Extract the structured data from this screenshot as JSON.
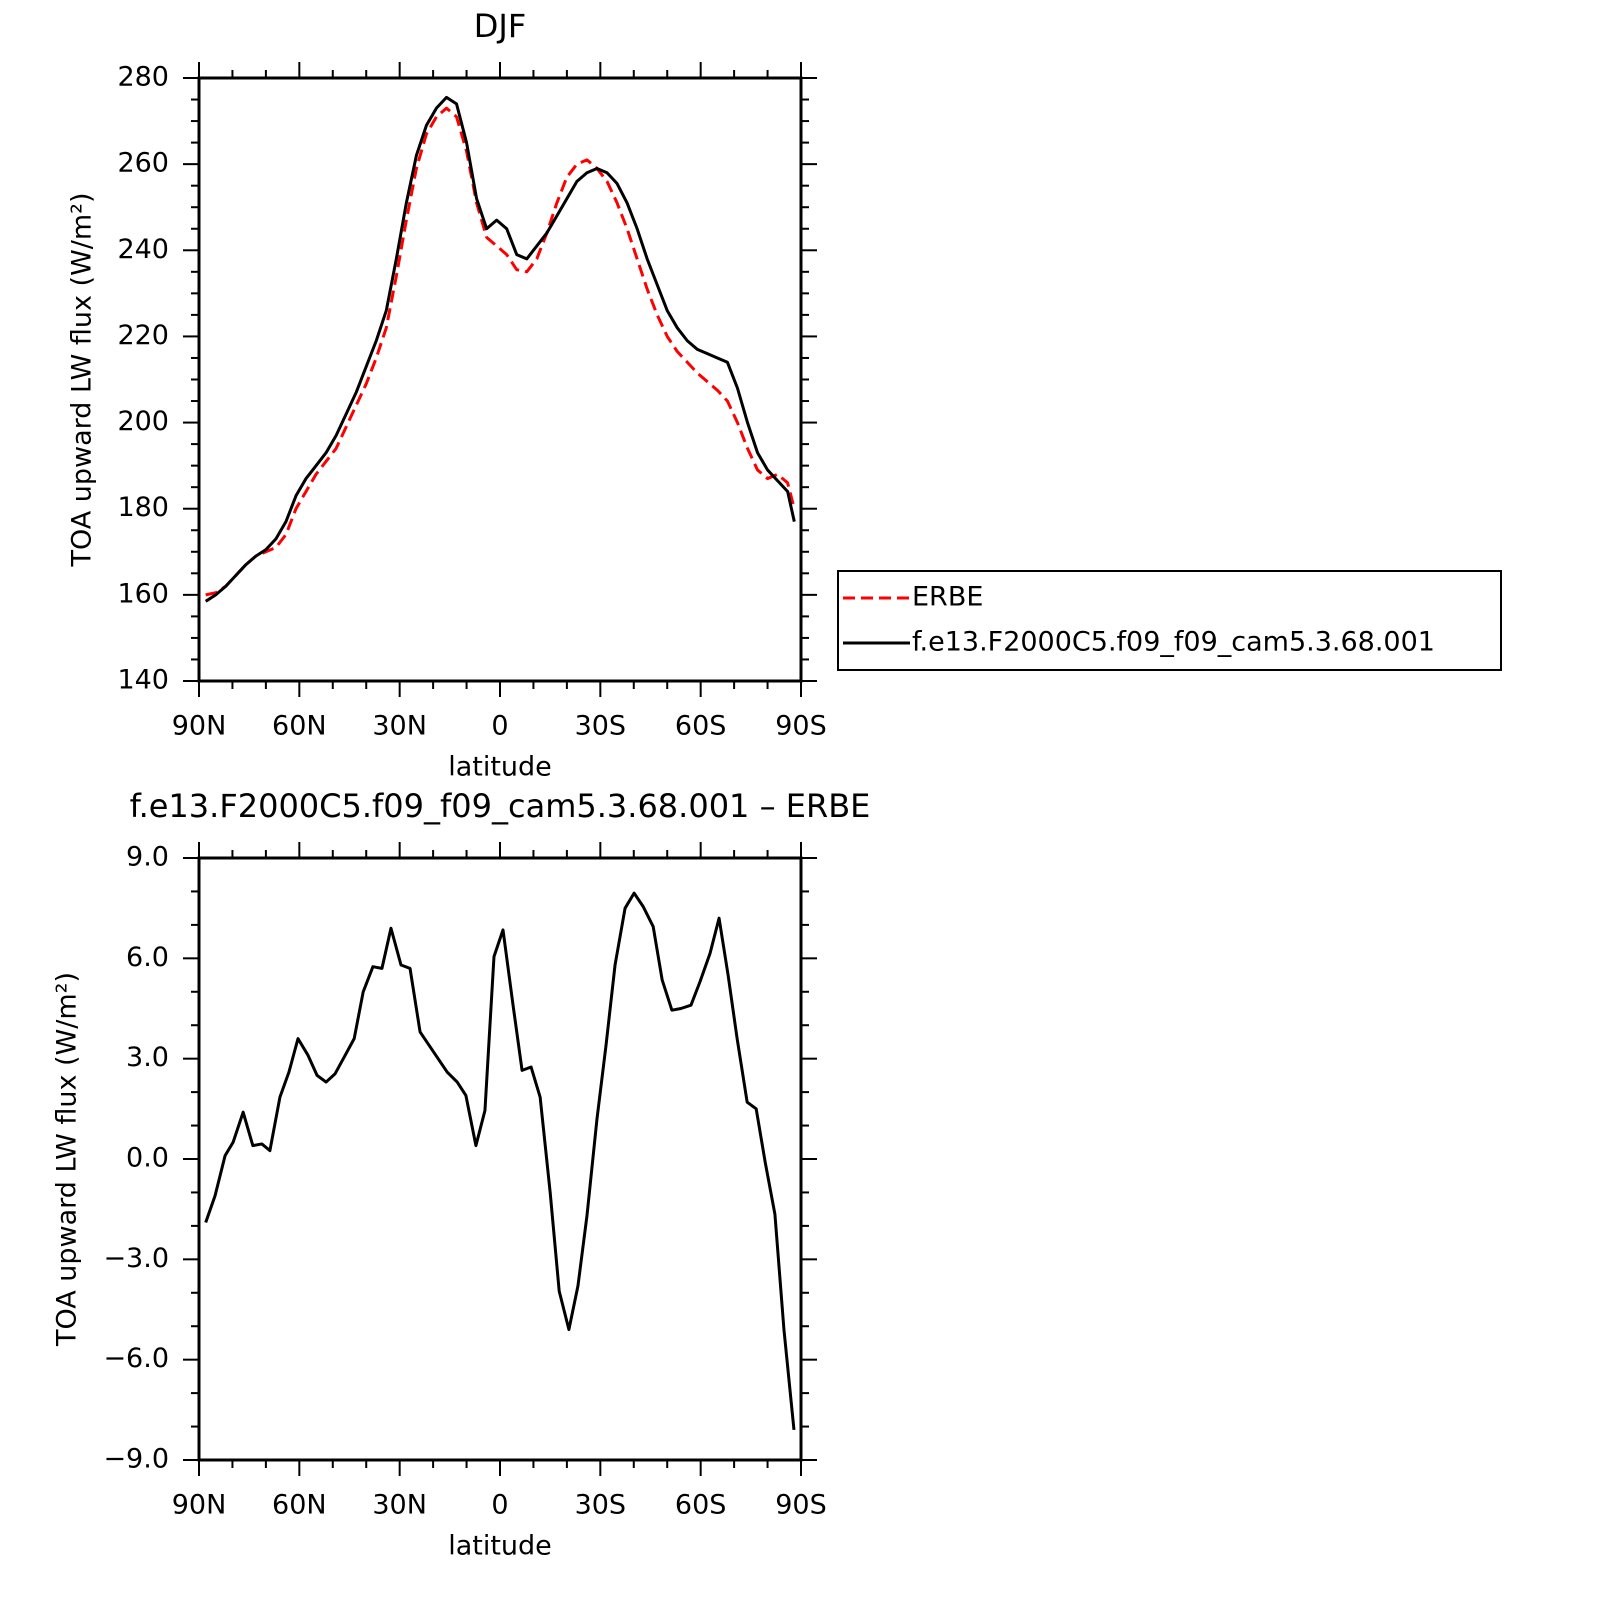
{
  "chart_data": [
    {
      "type": "line",
      "title": "DJF",
      "xlabel": "latitude",
      "ylabel": "TOA upward LW flux (W/m²)",
      "xlim": [
        90,
        -90
      ],
      "xticks": [
        {
          "value": 90,
          "label": "90N"
        },
        {
          "value": 60,
          "label": "60N"
        },
        {
          "value": 30,
          "label": "30N"
        },
        0,
        {
          "value": -30,
          "label": "30S"
        },
        {
          "value": -60,
          "label": "60S"
        },
        {
          "value": -90,
          "label": "90S"
        }
      ],
      "ylim": [
        140,
        280
      ],
      "yticks": [
        140,
        160,
        180,
        200,
        220,
        240,
        260,
        280
      ],
      "legend": "right",
      "x": [
        88,
        85,
        82,
        79,
        76,
        73,
        70,
        67,
        64,
        61,
        58,
        55,
        52,
        49,
        46,
        43,
        40,
        37,
        34,
        31,
        28,
        25,
        22,
        19,
        16,
        13,
        10,
        7,
        4,
        1,
        -2,
        -5,
        -8,
        -11,
        -14,
        -17,
        -20,
        -23,
        -26,
        -29,
        -32,
        -35,
        -38,
        -41,
        -44,
        -47,
        -50,
        -53,
        -56,
        -59,
        -62,
        -65,
        -68,
        -71,
        -74,
        -77,
        -80,
        -83,
        -86,
        -88
      ],
      "series": [
        {
          "name": "ERBE",
          "color": "#ff0000",
          "dash": true,
          "values": [
            160,
            160.5,
            162,
            164.5,
            167,
            169,
            170,
            171,
            174,
            180,
            184,
            188,
            191,
            194,
            199,
            204,
            209,
            215,
            222,
            234,
            247,
            259,
            267,
            271,
            273,
            271,
            263,
            251,
            243,
            241,
            239,
            235.5,
            235,
            238,
            244,
            251,
            257,
            260,
            261,
            259,
            256,
            251,
            245,
            238,
            231,
            225,
            220,
            216.5,
            214,
            211.5,
            209.5,
            207.5,
            205,
            200,
            194,
            189,
            187,
            188,
            186,
            180
          ]
        },
        {
          "name": "f.e13.F2000C5.f09_f09_cam5.3.68.001",
          "color": "#000000",
          "dash": false,
          "values": [
            158.5,
            160,
            162,
            164.5,
            167,
            169,
            170.5,
            173,
            177,
            183,
            187,
            190,
            193,
            197,
            202,
            207,
            213,
            219,
            226,
            238,
            251,
            262,
            269,
            273,
            275.5,
            274,
            265,
            252,
            245,
            247,
            245,
            239,
            238,
            241,
            244,
            248,
            252,
            256,
            258,
            259,
            258,
            255.5,
            251,
            245,
            238,
            232,
            226,
            222,
            219,
            217,
            216,
            215,
            214,
            208,
            200,
            193,
            189,
            186.5,
            184,
            177
          ]
        }
      ]
    },
    {
      "type": "line",
      "title": "f.e13.F2000C5.f09_f09_cam5.3.68.001 – ERBE",
      "xlabel": "latitude",
      "ylabel": "TOA upward LW flux (W/m²)",
      "xlim": [
        90,
        -90
      ],
      "xticks": [
        {
          "value": 90,
          "label": "90N"
        },
        {
          "value": 60,
          "label": "60N"
        },
        {
          "value": 30,
          "label": "30N"
        },
        0,
        {
          "value": -30,
          "label": "30S"
        },
        {
          "value": -60,
          "label": "60S"
        },
        {
          "value": -90,
          "label": "90S"
        }
      ],
      "ylim": [
        -9,
        9
      ],
      "yticks": [
        {
          "value": -9,
          "label": "−9.0"
        },
        {
          "value": -6,
          "label": "−6.0"
        },
        {
          "value": -3,
          "label": "−3.0"
        },
        {
          "value": 0,
          "label": "0.0"
        },
        {
          "value": 3,
          "label": "3.0"
        },
        {
          "value": 6,
          "label": "6.0"
        },
        {
          "value": 9,
          "label": "9.0"
        }
      ],
      "x": [
        88,
        85.2,
        82.2,
        79.8,
        76.8,
        73.9,
        71.2,
        68.8,
        65.8,
        63.1,
        60.4,
        57.4,
        54.7,
        52,
        49.3,
        46.3,
        43.6,
        40.9,
        38,
        35.3,
        32.6,
        29.6,
        26.9,
        23.9,
        21.2,
        18.5,
        15.8,
        12.8,
        10.2,
        7.2,
        4.5,
        1.8,
        -0.9,
        -3.9,
        -6.6,
        -9.3,
        -12,
        -15,
        -17.7,
        -20.6,
        -23.3,
        -26,
        -29,
        -31.7,
        -34.4,
        -37.4,
        -40.1,
        -42.8,
        -45.8,
        -48.5,
        -51.4,
        -54.1,
        -57.1,
        -59.8,
        -62.8,
        -65.5,
        -68.2,
        -70.9,
        -73.9,
        -76.6,
        -79.3,
        -82.2,
        -84.9,
        -87.9
      ],
      "series": [
        {
          "color": "#000000",
          "dash": false,
          "values": [
            -1.9,
            -1.1,
            0.1,
            0.5,
            1.4,
            0.4,
            0.45,
            0.25,
            1.85,
            2.6,
            3.6,
            3.1,
            2.5,
            2.3,
            2.55,
            3.1,
            3.6,
            5.0,
            5.75,
            5.7,
            6.9,
            5.8,
            5.7,
            3.8,
            3.4,
            3.0,
            2.6,
            2.3,
            1.9,
            0.4,
            1.45,
            6.05,
            6.85,
            4.6,
            2.65,
            2.75,
            1.85,
            -1.0,
            -3.95,
            -5.1,
            -3.8,
            -1.7,
            1.2,
            3.4,
            5.8,
            7.5,
            7.95,
            7.55,
            6.95,
            5.35,
            4.45,
            4.5,
            4.6,
            5.3,
            6.15,
            7.2,
            5.5,
            3.6,
            1.7,
            1.5,
            -0.1,
            -1.65,
            -5.1,
            -8.1
          ]
        }
      ]
    }
  ]
}
